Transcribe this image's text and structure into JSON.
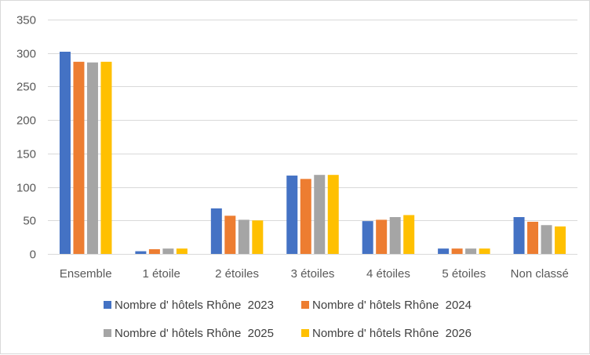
{
  "chart_data": {
    "type": "bar",
    "title": "",
    "xlabel": "",
    "ylabel": "",
    "ylim": [
      0,
      350
    ],
    "yticks": [
      0,
      50,
      100,
      150,
      200,
      250,
      300,
      350
    ],
    "grid": true,
    "legend_position": "bottom",
    "categories": [
      "Ensemble",
      "1 étoile",
      "2 étoiles",
      "3 étoiles",
      "4 étoiles",
      "5 étoiles",
      "Non classé"
    ],
    "series": [
      {
        "name": "Nombre d' hôtels Rhône  2023",
        "color": "#4472C4",
        "values": [
          302,
          4,
          68,
          117,
          49,
          8,
          55
        ]
      },
      {
        "name": "Nombre d' hôtels Rhône  2024",
        "color": "#ED7D31",
        "values": [
          287,
          7,
          57,
          112,
          51,
          8,
          48
        ]
      },
      {
        "name": "Nombre d' hôtels Rhône  2025",
        "color": "#A5A5A5",
        "values": [
          286,
          8,
          51,
          118,
          55,
          8,
          43
        ]
      },
      {
        "name": "Nombre d' hôtels Rhône  2026",
        "color": "#FFC000",
        "values": [
          287,
          8,
          50,
          118,
          58,
          8,
          41
        ]
      }
    ]
  }
}
